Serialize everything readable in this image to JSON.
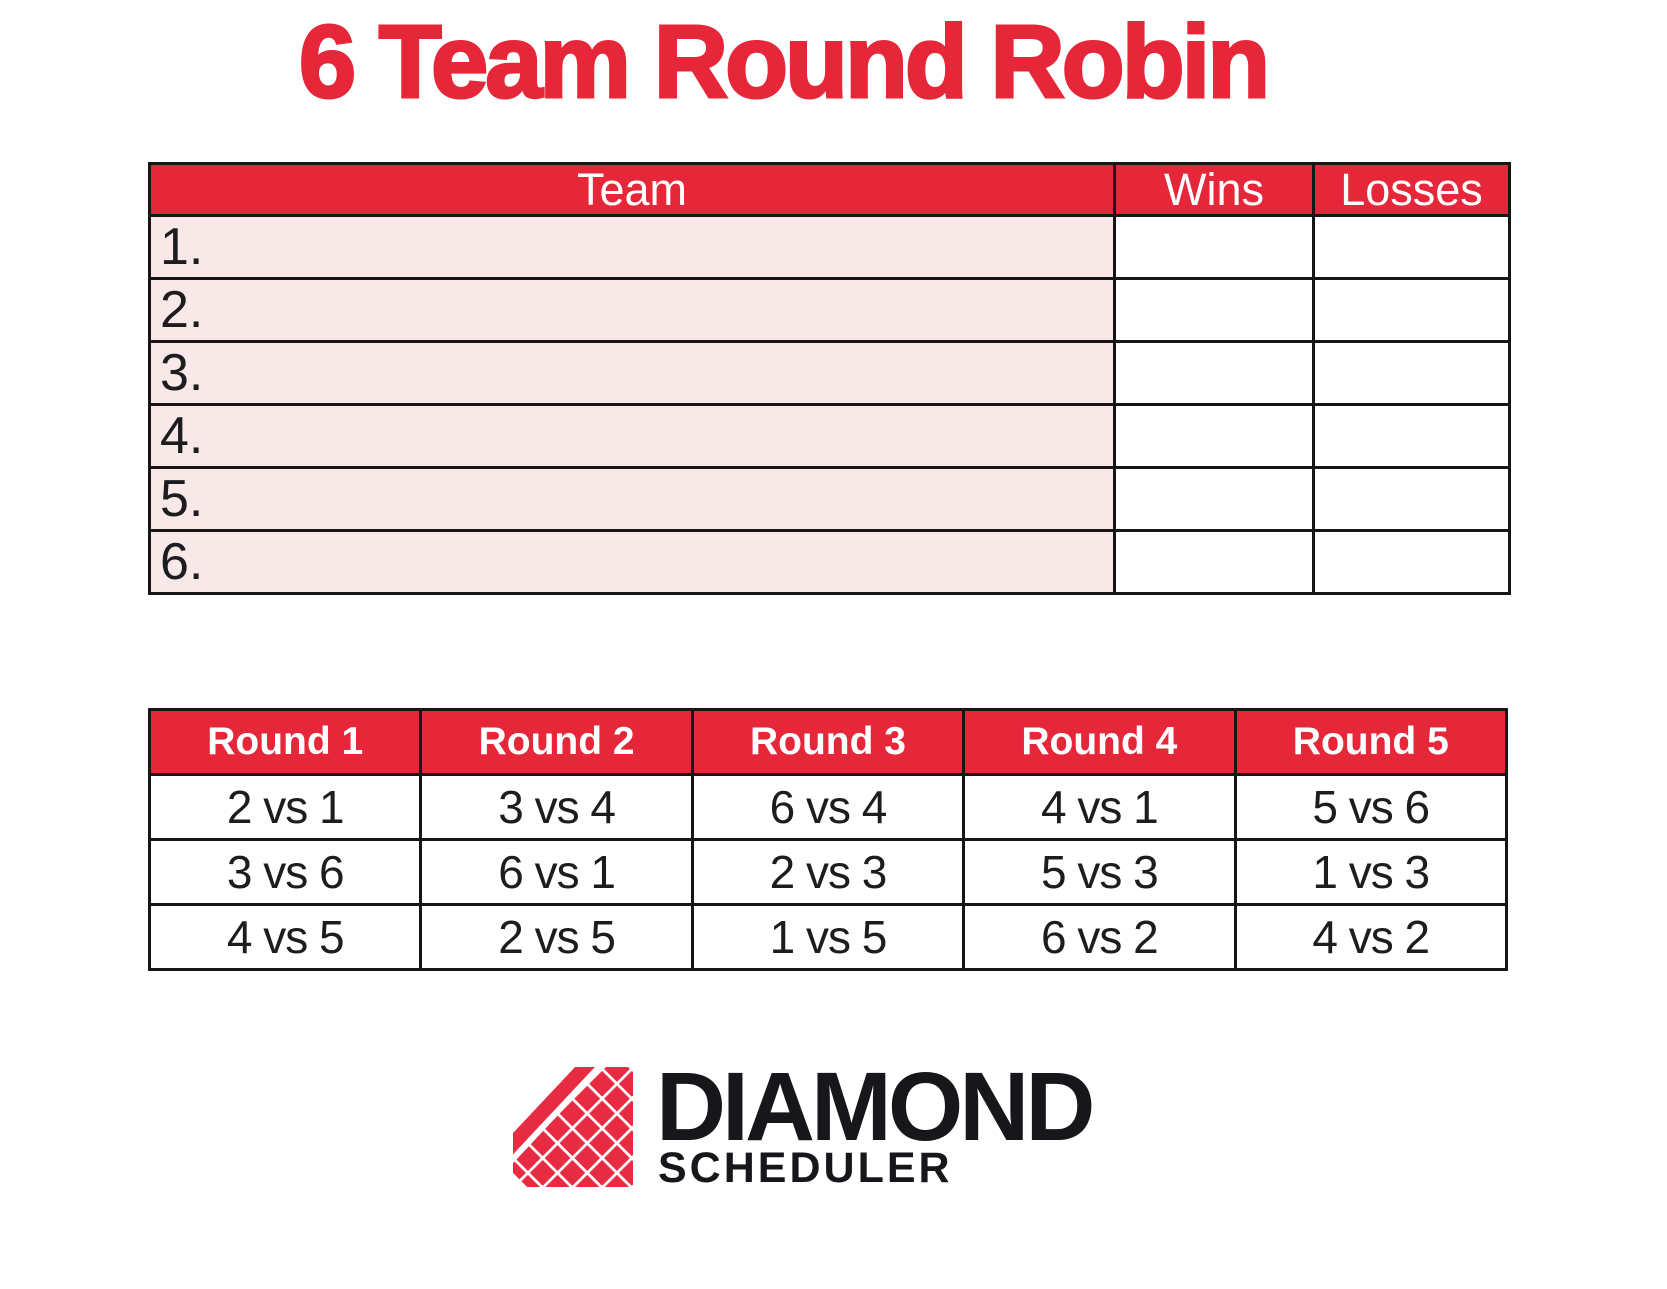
{
  "title": "6 Team Round Robin",
  "colors": {
    "brand_red": "#E62639",
    "row_pink": "#f8e8e8",
    "border_black": "#161616",
    "text_black": "#1d1d1f"
  },
  "standings_table": {
    "headers": {
      "team": "Team",
      "wins": "Wins",
      "losses": "Losses"
    },
    "rows": [
      {
        "label": "1.",
        "wins": "",
        "losses": ""
      },
      {
        "label": "2.",
        "wins": "",
        "losses": ""
      },
      {
        "label": "3.",
        "wins": "",
        "losses": ""
      },
      {
        "label": "4.",
        "wins": "",
        "losses": ""
      },
      {
        "label": "5.",
        "wins": "",
        "losses": ""
      },
      {
        "label": "6.",
        "wins": "",
        "losses": ""
      }
    ]
  },
  "rounds_table": {
    "headers": [
      "Round 1",
      "Round 2",
      "Round 3",
      "Round 4",
      "Round 5"
    ],
    "rows": [
      [
        "2 vs 1",
        "3 vs 4",
        "6 vs 4",
        "4 vs 1",
        "5 vs 6"
      ],
      [
        "3 vs 6",
        "6 vs 1",
        "2 vs 3",
        "5 vs 3",
        "1 vs 3"
      ],
      [
        "4 vs 5",
        "2 vs 5",
        "1 vs 5",
        "6 vs 2",
        "4 vs 2"
      ]
    ]
  },
  "logo": {
    "icon": "diamond-lattice-icon",
    "title": "DIAMOND",
    "subtitle": "SCHEDULER"
  }
}
